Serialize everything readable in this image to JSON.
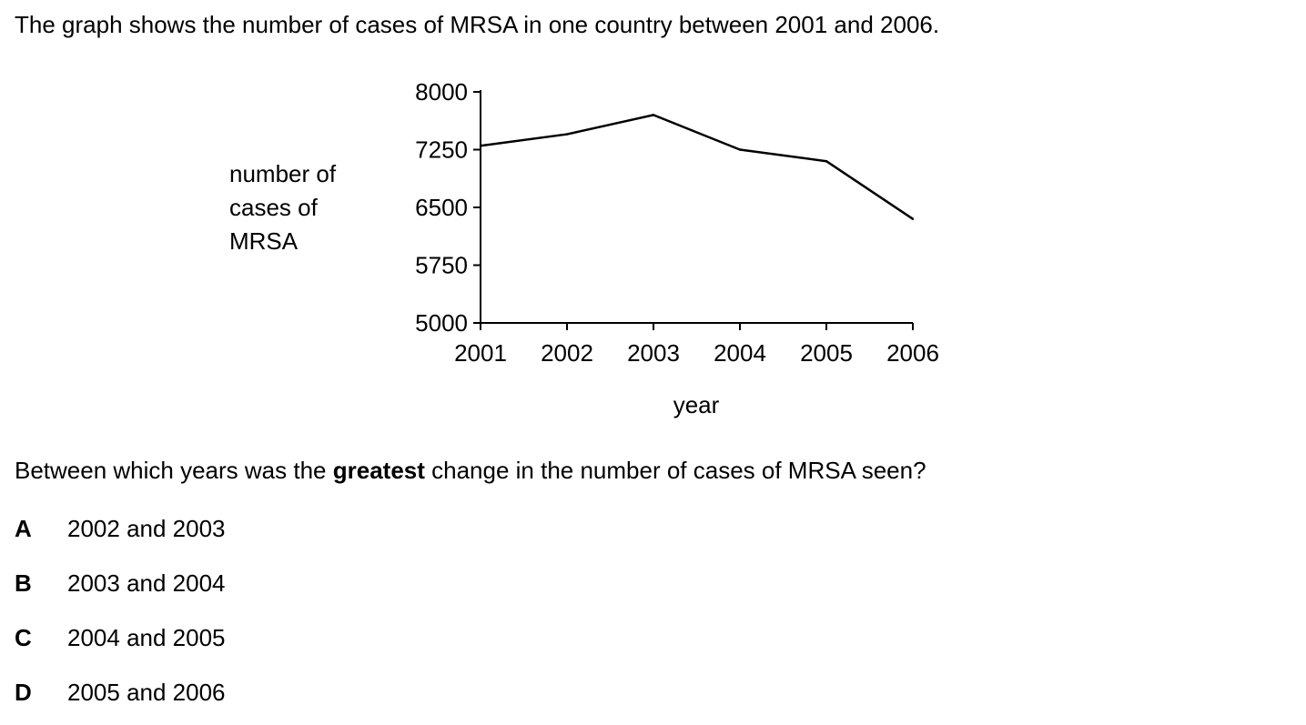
{
  "intro_text": "The graph shows the number of cases of MRSA in one country between 2001 and 2006.",
  "question": {
    "before": "Between which years was the ",
    "bold": "greatest",
    "after": " change in the number of cases of MRSA seen?"
  },
  "options": [
    {
      "letter": "A",
      "text": "2002 and 2003"
    },
    {
      "letter": "B",
      "text": "2003 and 2004"
    },
    {
      "letter": "C",
      "text": "2004 and 2005"
    },
    {
      "letter": "D",
      "text": "2005 and 2006"
    }
  ],
  "chart_data": {
    "type": "line",
    "title": "",
    "xlabel": "year",
    "ylabel": [
      "number of",
      "cases of",
      "MRSA"
    ],
    "x": [
      2001,
      2002,
      2003,
      2004,
      2005,
      2006
    ],
    "x_ticks": [
      "2001",
      "2002",
      "2003",
      "2004",
      "2005",
      "2006"
    ],
    "y_ticks": [
      "8000",
      "7250",
      "6500",
      "5750",
      "5000"
    ],
    "ylim": [
      5000,
      8000
    ],
    "grid": false,
    "series": [
      {
        "values": [
          7300,
          7450,
          7700,
          7250,
          7100,
          6350
        ]
      }
    ]
  }
}
